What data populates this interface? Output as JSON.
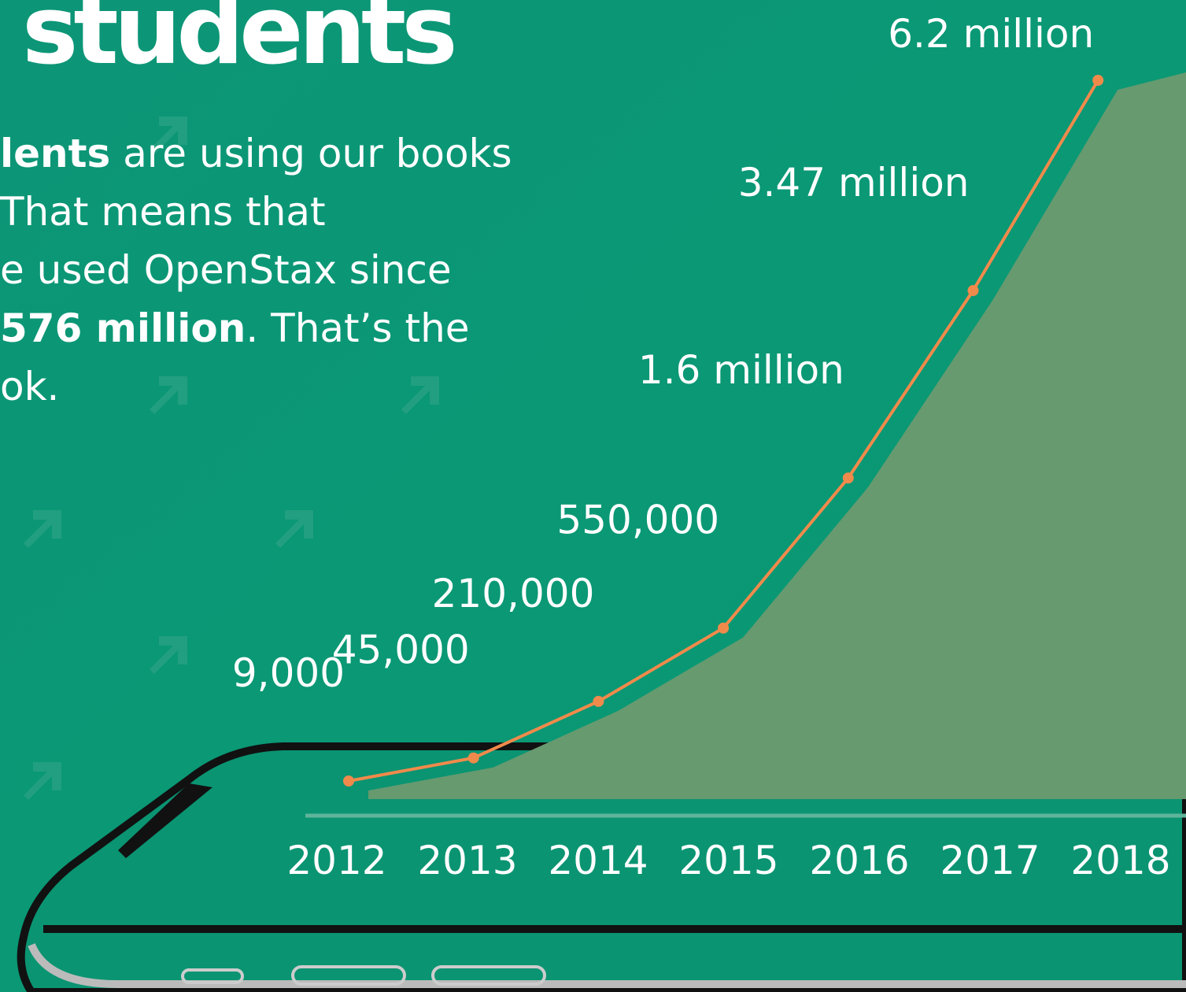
{
  "header": {
    "title": "students"
  },
  "intro": {
    "lines": [
      [
        {
          "text": "lents",
          "bold": true
        },
        {
          "text": " are using our books",
          "bold": false
        }
      ],
      [
        {
          "text": " That means that",
          "bold": false
        }
      ],
      [
        {
          "text": "e used OpenStax since",
          "bold": false
        }
      ],
      [
        {
          "text": "576 million",
          "bold": true
        },
        {
          "text": ". That’s the",
          "bold": false
        }
      ],
      [
        {
          "text": "ok.",
          "bold": false
        }
      ]
    ]
  },
  "chart_data": {
    "type": "line",
    "categories": [
      "2012",
      "2013",
      "2014",
      "2015",
      "2016",
      "2017",
      "2018"
    ],
    "values": [
      9000,
      45000,
      210000,
      550000,
      1600000,
      3470000,
      6200000
    ],
    "value_labels": [
      "9,000",
      "45,000",
      "210,000",
      "550,000",
      "1.6 million",
      "3.47 million",
      "6.2 million"
    ],
    "color": "#f08a4b",
    "area_color": "#679a6f"
  }
}
